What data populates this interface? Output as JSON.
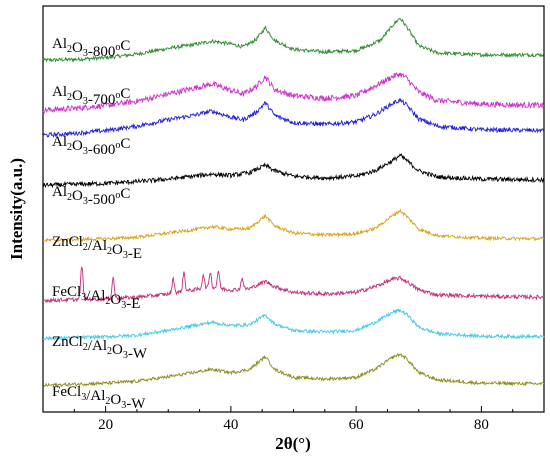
{
  "chart_data": {
    "type": "line",
    "xlabel": "2θ(°)",
    "ylabel": "Intensity(a.u.)",
    "xlim": [
      10,
      90
    ],
    "xticks": [
      20,
      40,
      60,
      80
    ],
    "grid": false,
    "legend": "none",
    "series": [
      {
        "name": "Al2O3-800oC",
        "label_parts": [
          [
            "Al",
            ""
          ],
          [
            "2",
            "sub"
          ],
          [
            "O",
            ""
          ],
          [
            "3",
            "sub"
          ],
          [
            "-800",
            ""
          ],
          [
            "o",
            "sup"
          ],
          [
            "C",
            ""
          ]
        ],
        "color": "#2e8b2e",
        "noise": 0.05,
        "points": [
          [
            10,
            0.05
          ],
          [
            15,
            0.07
          ],
          [
            20,
            0.12
          ],
          [
            25,
            0.22
          ],
          [
            30,
            0.38
          ],
          [
            34,
            0.48
          ],
          [
            37,
            0.58
          ],
          [
            40,
            0.5
          ],
          [
            42,
            0.42
          ],
          [
            44,
            0.62
          ],
          [
            45.5,
            0.95
          ],
          [
            47,
            0.6
          ],
          [
            50,
            0.35
          ],
          [
            55,
            0.28
          ],
          [
            60,
            0.32
          ],
          [
            62,
            0.45
          ],
          [
            64,
            0.62
          ],
          [
            66,
            1.05
          ],
          [
            67,
            1.22
          ],
          [
            68,
            1.0
          ],
          [
            70,
            0.45
          ],
          [
            73,
            0.25
          ],
          [
            80,
            0.2
          ],
          [
            90,
            0.2
          ]
        ]
      },
      {
        "name": "Al2O3-700oC",
        "label_parts": [
          [
            "Al",
            ""
          ],
          [
            "2",
            "sub"
          ],
          [
            "O",
            ""
          ],
          [
            "3",
            "sub"
          ],
          [
            "-700",
            ""
          ],
          [
            "o",
            "sup"
          ],
          [
            "C",
            ""
          ]
        ],
        "color": "#cc33cc",
        "noise": 0.08,
        "points": [
          [
            10,
            0.05
          ],
          [
            15,
            0.1
          ],
          [
            20,
            0.18
          ],
          [
            25,
            0.3
          ],
          [
            30,
            0.5
          ],
          [
            34,
            0.66
          ],
          [
            37,
            0.78
          ],
          [
            40,
            0.6
          ],
          [
            42,
            0.5
          ],
          [
            44,
            0.7
          ],
          [
            45.5,
            0.98
          ],
          [
            47,
            0.62
          ],
          [
            50,
            0.45
          ],
          [
            55,
            0.38
          ],
          [
            60,
            0.45
          ],
          [
            63,
            0.72
          ],
          [
            66,
            1.0
          ],
          [
            67,
            1.05
          ],
          [
            68,
            0.95
          ],
          [
            70,
            0.55
          ],
          [
            73,
            0.32
          ],
          [
            80,
            0.22
          ],
          [
            90,
            0.18
          ]
        ]
      },
      {
        "name": "Al2O3-600oC",
        "label_parts": [
          [
            "Al",
            ""
          ],
          [
            "2",
            "sub"
          ],
          [
            "O",
            ""
          ],
          [
            "3",
            "sub"
          ],
          [
            "-600",
            ""
          ],
          [
            "o",
            "sup"
          ],
          [
            "C",
            ""
          ]
        ],
        "color": "#1f1fdd",
        "noise": 0.06,
        "points": [
          [
            10,
            0.05
          ],
          [
            15,
            0.1
          ],
          [
            20,
            0.18
          ],
          [
            25,
            0.3
          ],
          [
            30,
            0.48
          ],
          [
            34,
            0.6
          ],
          [
            37,
            0.72
          ],
          [
            40,
            0.55
          ],
          [
            42,
            0.48
          ],
          [
            44,
            0.68
          ],
          [
            45.5,
            0.95
          ],
          [
            47,
            0.6
          ],
          [
            50,
            0.4
          ],
          [
            55,
            0.35
          ],
          [
            60,
            0.42
          ],
          [
            63,
            0.62
          ],
          [
            66,
            0.95
          ],
          [
            67,
            1.02
          ],
          [
            68,
            0.9
          ],
          [
            70,
            0.5
          ],
          [
            73,
            0.3
          ],
          [
            80,
            0.2
          ],
          [
            90,
            0.18
          ]
        ]
      },
      {
        "name": "Al2O3-500oC",
        "label_parts": [
          [
            "Al",
            ""
          ],
          [
            "2",
            "sub"
          ],
          [
            "O",
            ""
          ],
          [
            "3",
            "sub"
          ],
          [
            "-500",
            ""
          ],
          [
            "o",
            "sup"
          ],
          [
            "C",
            ""
          ]
        ],
        "color": "#000000",
        "noise": 0.06,
        "points": [
          [
            10,
            0.05
          ],
          [
            20,
            0.1
          ],
          [
            25,
            0.15
          ],
          [
            30,
            0.22
          ],
          [
            34,
            0.3
          ],
          [
            37,
            0.36
          ],
          [
            40,
            0.32
          ],
          [
            43,
            0.4
          ],
          [
            45.5,
            0.6
          ],
          [
            47,
            0.45
          ],
          [
            50,
            0.3
          ],
          [
            55,
            0.25
          ],
          [
            60,
            0.3
          ],
          [
            63,
            0.45
          ],
          [
            66,
            0.75
          ],
          [
            67,
            0.88
          ],
          [
            68,
            0.75
          ],
          [
            70,
            0.45
          ],
          [
            73,
            0.28
          ],
          [
            80,
            0.22
          ],
          [
            90,
            0.2
          ]
        ]
      },
      {
        "name": "ZnCl2/Al2O3-E",
        "label_parts": [
          [
            "ZnCl",
            ""
          ],
          [
            "2",
            "sub"
          ],
          [
            "/Al",
            ""
          ],
          [
            "2",
            "sub"
          ],
          [
            "O",
            ""
          ],
          [
            "3",
            "sub"
          ],
          [
            "-E",
            ""
          ]
        ],
        "color": "#d9a21e",
        "noise": 0.05,
        "points": [
          [
            10,
            0.05
          ],
          [
            20,
            0.1
          ],
          [
            25,
            0.15
          ],
          [
            30,
            0.28
          ],
          [
            34,
            0.38
          ],
          [
            37,
            0.48
          ],
          [
            40,
            0.4
          ],
          [
            43,
            0.42
          ],
          [
            45.5,
            0.82
          ],
          [
            47,
            0.5
          ],
          [
            50,
            0.28
          ],
          [
            55,
            0.22
          ],
          [
            60,
            0.26
          ],
          [
            63,
            0.42
          ],
          [
            66,
            0.85
          ],
          [
            67,
            0.98
          ],
          [
            68,
            0.82
          ],
          [
            70,
            0.4
          ],
          [
            73,
            0.2
          ],
          [
            80,
            0.12
          ],
          [
            90,
            0.1
          ]
        ]
      },
      {
        "name": "FeCl3/Al2O3-E",
        "label_parts": [
          [
            "FeCl",
            ""
          ],
          [
            "3",
            "sub"
          ],
          [
            "/Al",
            ""
          ],
          [
            "2",
            "sub"
          ],
          [
            "O",
            ""
          ],
          [
            "3",
            "sub"
          ],
          [
            "-E",
            ""
          ]
        ],
        "color": "#c2307a",
        "noise": 0.06,
        "spikes": [
          [
            16.2,
            1.05
          ],
          [
            21.2,
            0.65
          ],
          [
            30.8,
            0.45
          ],
          [
            32.5,
            0.6
          ],
          [
            35.6,
            0.45
          ],
          [
            36.7,
            0.5
          ],
          [
            38,
            0.55
          ],
          [
            41.8,
            0.35
          ]
        ],
        "points": [
          [
            10,
            0.05
          ],
          [
            20,
            0.1
          ],
          [
            25,
            0.15
          ],
          [
            30,
            0.25
          ],
          [
            34,
            0.38
          ],
          [
            37,
            0.45
          ],
          [
            40,
            0.38
          ],
          [
            43,
            0.42
          ],
          [
            45.5,
            0.65
          ],
          [
            47,
            0.48
          ],
          [
            50,
            0.3
          ],
          [
            55,
            0.25
          ],
          [
            60,
            0.3
          ],
          [
            63,
            0.48
          ],
          [
            66,
            0.72
          ],
          [
            67,
            0.75
          ],
          [
            68,
            0.65
          ],
          [
            70,
            0.38
          ],
          [
            73,
            0.22
          ],
          [
            80,
            0.18
          ],
          [
            90,
            0.15
          ]
        ]
      },
      {
        "name": "ZnCl2/Al2O3-W",
        "label_parts": [
          [
            "ZnCl",
            ""
          ],
          [
            "2",
            "sub"
          ],
          [
            "/Al",
            ""
          ],
          [
            "2",
            "sub"
          ],
          [
            "O",
            ""
          ],
          [
            "3",
            "sub"
          ],
          [
            "-W",
            ""
          ]
        ],
        "color": "#44c8e8",
        "noise": 0.05,
        "points": [
          [
            10,
            0.05
          ],
          [
            20,
            0.1
          ],
          [
            25,
            0.15
          ],
          [
            30,
            0.3
          ],
          [
            34,
            0.45
          ],
          [
            37,
            0.55
          ],
          [
            40,
            0.45
          ],
          [
            43,
            0.48
          ],
          [
            45.5,
            0.78
          ],
          [
            47,
            0.5
          ],
          [
            50,
            0.3
          ],
          [
            55,
            0.25
          ],
          [
            60,
            0.3
          ],
          [
            63,
            0.55
          ],
          [
            66,
            0.88
          ],
          [
            67,
            0.92
          ],
          [
            68,
            0.82
          ],
          [
            70,
            0.4
          ],
          [
            73,
            0.2
          ],
          [
            80,
            0.12
          ],
          [
            90,
            0.1
          ]
        ]
      },
      {
        "name": "FeCl3/Al2O3-W",
        "label_parts": [
          [
            "FeCl",
            ""
          ],
          [
            "3",
            "sub"
          ],
          [
            "/Al",
            ""
          ],
          [
            "2",
            "sub"
          ],
          [
            "O",
            ""
          ],
          [
            "3",
            "sub"
          ],
          [
            "-W",
            ""
          ]
        ],
        "color": "#8b8b1e",
        "noise": 0.05,
        "points": [
          [
            10,
            0.05
          ],
          [
            20,
            0.12
          ],
          [
            25,
            0.18
          ],
          [
            30,
            0.32
          ],
          [
            34,
            0.45
          ],
          [
            37,
            0.55
          ],
          [
            40,
            0.45
          ],
          [
            43,
            0.55
          ],
          [
            45.5,
            0.95
          ],
          [
            47,
            0.55
          ],
          [
            50,
            0.3
          ],
          [
            55,
            0.25
          ],
          [
            60,
            0.3
          ],
          [
            63,
            0.55
          ],
          [
            66,
            0.95
          ],
          [
            67,
            1.02
          ],
          [
            68,
            0.9
          ],
          [
            70,
            0.45
          ],
          [
            73,
            0.22
          ],
          [
            80,
            0.12
          ],
          [
            90,
            0.1
          ]
        ]
      }
    ]
  }
}
